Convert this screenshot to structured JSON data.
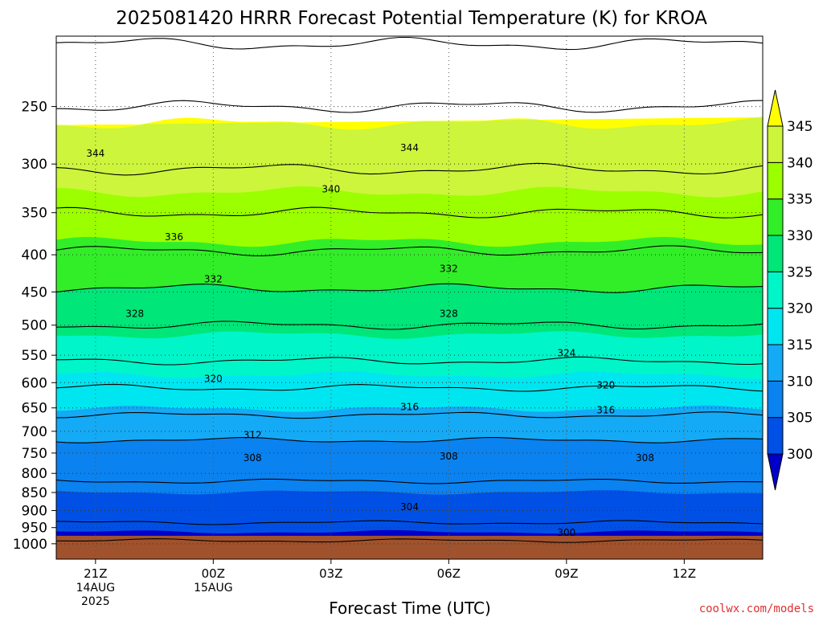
{
  "chart_data": {
    "type": "heatmap",
    "title": "2025081420 HRRR Forecast Potential Temperature (K) for KROA",
    "xlabel": "Forecast Time (UTC)",
    "ylabel": "",
    "credit": "coolwx.com/models",
    "y_scale": "log",
    "y_inverted": true,
    "y_range": [
      200,
      1050
    ],
    "y_ticks": [
      250,
      300,
      350,
      400,
      450,
      500,
      550,
      600,
      650,
      700,
      750,
      800,
      850,
      900,
      950,
      1000
    ],
    "y_tick_labels": [
      "250",
      "300",
      "350",
      "400",
      "450",
      "500",
      "550",
      "600",
      "650",
      "700",
      "750",
      "800",
      "850",
      "900",
      "950",
      "1000"
    ],
    "x_range_hours": [
      -1.0,
      17.0
    ],
    "x_ticks": [
      {
        "hour": 0,
        "label": "21Z",
        "sub1": "14AUG",
        "sub2": "2025"
      },
      {
        "hour": 3,
        "label": "00Z",
        "sub1": "15AUG",
        "sub2": ""
      },
      {
        "hour": 6,
        "label": "03Z",
        "sub1": "",
        "sub2": ""
      },
      {
        "hour": 9,
        "label": "06Z",
        "sub1": "",
        "sub2": ""
      },
      {
        "hour": 12,
        "label": "09Z",
        "sub1": "",
        "sub2": ""
      },
      {
        "hour": 15,
        "label": "12Z",
        "sub1": "",
        "sub2": ""
      }
    ],
    "grid": true,
    "ground_pressure": 975,
    "colorbar": {
      "levels": [
        300,
        305,
        310,
        315,
        320,
        325,
        330,
        335,
        340,
        345
      ],
      "labels": [
        "300",
        "305",
        "310",
        "315",
        "320",
        "325",
        "330",
        "335",
        "340",
        "345"
      ],
      "colors": [
        "#0000c8",
        "#0050e6",
        "#0a82f0",
        "#14aaf5",
        "#00e6f0",
        "#00f5c8",
        "#00e678",
        "#32ee28",
        "#9bff00",
        "#ccf53c",
        "#ffff00"
      ]
    },
    "contour_interval": 4,
    "contour_labels": [
      {
        "value": "344",
        "hour": 0.0,
        "p": 290
      },
      {
        "value": "344",
        "hour": 8.0,
        "p": 285
      },
      {
        "value": "340",
        "hour": 6.0,
        "p": 325
      },
      {
        "value": "336",
        "hour": 2.0,
        "p": 378
      },
      {
        "value": "332",
        "hour": 3.0,
        "p": 432
      },
      {
        "value": "332",
        "hour": 9.0,
        "p": 418
      },
      {
        "value": "328",
        "hour": 1.0,
        "p": 482
      },
      {
        "value": "328",
        "hour": 9.0,
        "p": 482
      },
      {
        "value": "324",
        "hour": 12.0,
        "p": 546
      },
      {
        "value": "320",
        "hour": 3.0,
        "p": 593
      },
      {
        "value": "320",
        "hour": 13.0,
        "p": 605
      },
      {
        "value": "316",
        "hour": 8.0,
        "p": 648
      },
      {
        "value": "316",
        "hour": 13.0,
        "p": 655
      },
      {
        "value": "312",
        "hour": 4.0,
        "p": 708
      },
      {
        "value": "308",
        "hour": 4.0,
        "p": 762
      },
      {
        "value": "308",
        "hour": 9.0,
        "p": 758
      },
      {
        "value": "308",
        "hour": 14.0,
        "p": 762
      },
      {
        "value": "304",
        "hour": 8.0,
        "p": 890
      },
      {
        "value": "300",
        "hour": 12.0,
        "p": 965
      }
    ],
    "profile": {
      "theta": [
        298,
        302,
        306,
        310,
        314,
        318,
        322,
        326,
        330,
        334,
        338,
        342,
        346,
        350
      ],
      "pressure": [
        990,
        935,
        820,
        720,
        665,
        610,
        560,
        500,
        445,
        395,
        350,
        305,
        250,
        205
      ]
    }
  }
}
